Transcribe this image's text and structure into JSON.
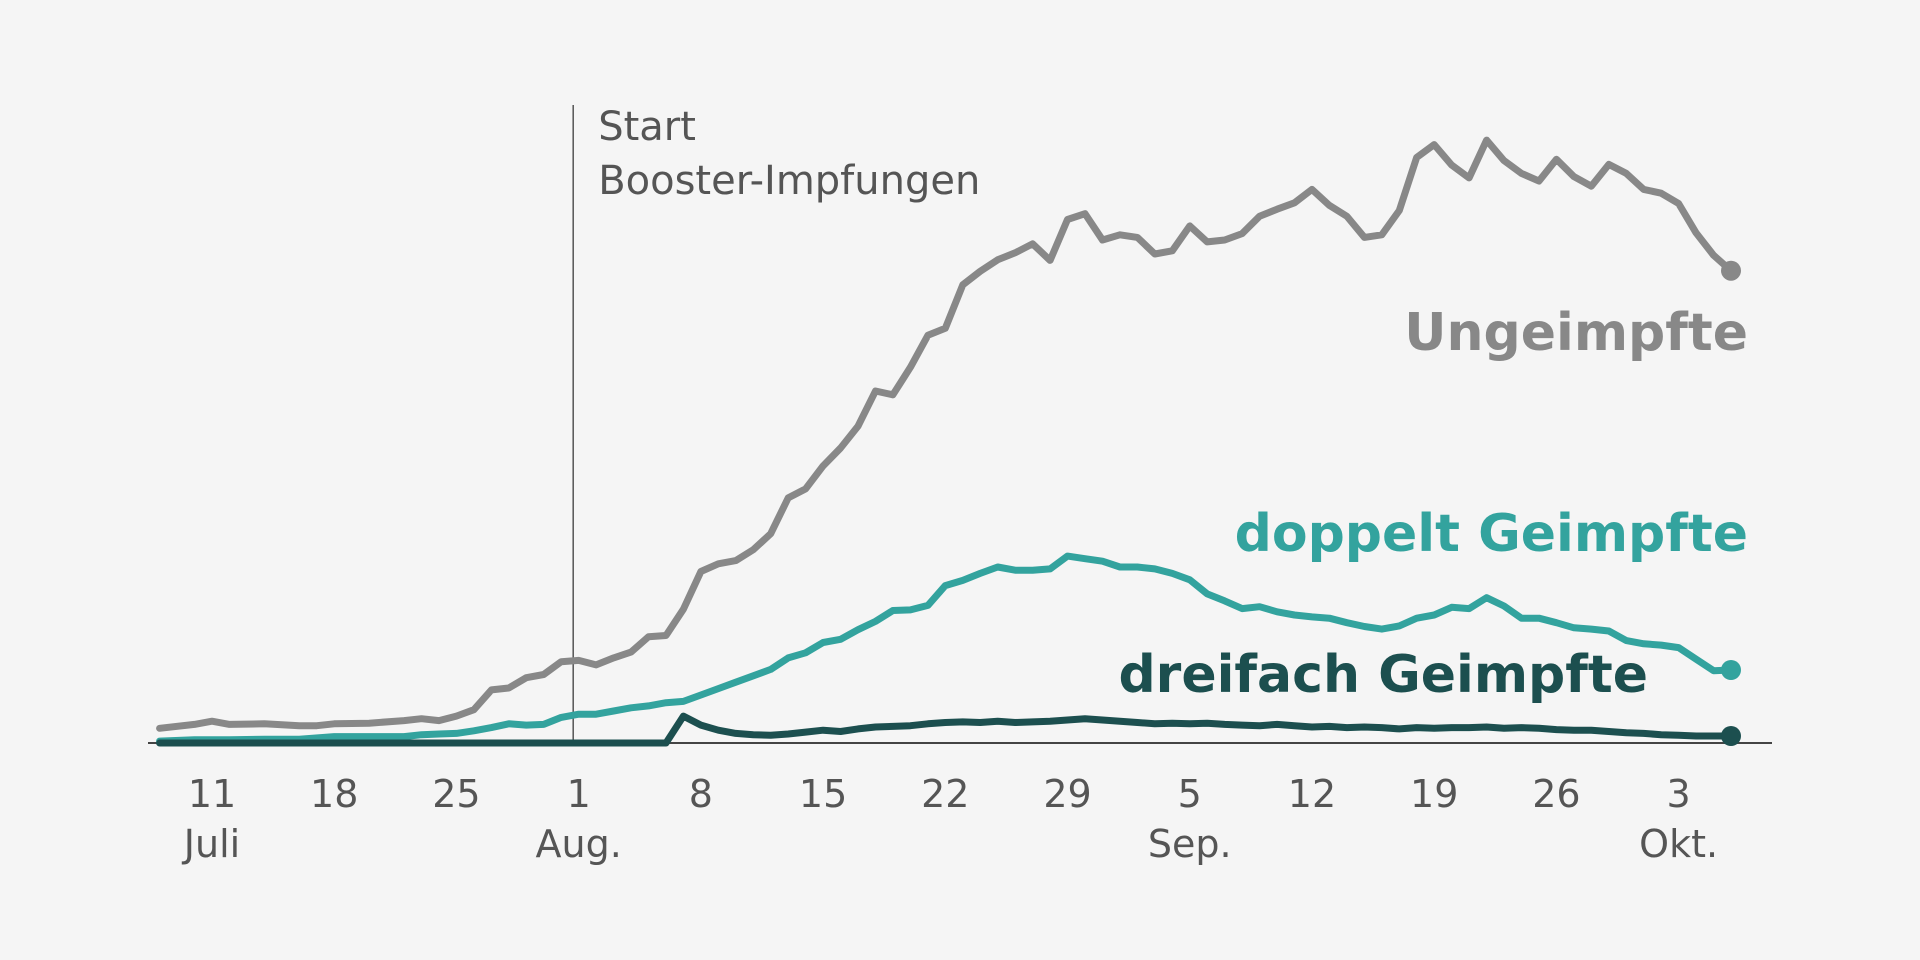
{
  "chart_data": {
    "type": "line",
    "x_start": "2021-07-07",
    "x_end": "2021-10-05",
    "ylim": [
      0,
      100
    ],
    "grid": false,
    "legend": "inline-labels",
    "x_ticks": [
      {
        "date": "2021-07-11",
        "day": "11",
        "month": "Juli"
      },
      {
        "date": "2021-07-18",
        "day": "18",
        "month": ""
      },
      {
        "date": "2021-07-25",
        "day": "25",
        "month": ""
      },
      {
        "date": "2021-08-01",
        "day": "1",
        "month": "Aug."
      },
      {
        "date": "2021-08-08",
        "day": "8",
        "month": ""
      },
      {
        "date": "2021-08-15",
        "day": "15",
        "month": ""
      },
      {
        "date": "2021-08-22",
        "day": "22",
        "month": ""
      },
      {
        "date": "2021-08-29",
        "day": "29",
        "month": ""
      },
      {
        "date": "2021-09-05",
        "day": "5",
        "month": "Sep."
      },
      {
        "date": "2021-09-12",
        "day": "12",
        "month": ""
      },
      {
        "date": "2021-09-19",
        "day": "19",
        "month": ""
      },
      {
        "date": "2021-09-26",
        "day": "26",
        "month": ""
      },
      {
        "date": "2021-10-03",
        "day": "3",
        "month": "Okt."
      }
    ],
    "annotation": {
      "date": "2021-07-31",
      "line1": "Start",
      "line2": "Booster-Impfungen"
    },
    "series": [
      {
        "name": "Ungeimpfte",
        "color": "#888888",
        "points": [
          [
            "2021-07-08",
            2.3
          ],
          [
            "2021-07-10",
            2.9
          ],
          [
            "2021-07-11",
            3.4
          ],
          [
            "2021-07-12",
            2.9
          ],
          [
            "2021-07-14",
            3.0
          ],
          [
            "2021-07-16",
            2.7
          ],
          [
            "2021-07-17",
            2.7
          ],
          [
            "2021-07-18",
            3.0
          ],
          [
            "2021-07-20",
            3.1
          ],
          [
            "2021-07-22",
            3.5
          ],
          [
            "2021-07-23",
            3.8
          ],
          [
            "2021-07-24",
            3.5
          ],
          [
            "2021-07-25",
            4.2
          ],
          [
            "2021-07-26",
            5.2
          ],
          [
            "2021-07-27",
            8.3
          ],
          [
            "2021-07-28",
            8.6
          ],
          [
            "2021-07-29",
            10.2
          ],
          [
            "2021-07-30",
            10.7
          ],
          [
            "2021-07-31",
            12.7
          ],
          [
            "2021-08-01",
            12.9
          ],
          [
            "2021-08-02",
            12.2
          ],
          [
            "2021-08-03",
            13.3
          ],
          [
            "2021-08-04",
            14.2
          ],
          [
            "2021-08-05",
            16.6
          ],
          [
            "2021-08-06",
            16.8
          ],
          [
            "2021-08-07",
            20.9
          ],
          [
            "2021-08-08",
            26.8
          ],
          [
            "2021-08-09",
            28.0
          ],
          [
            "2021-08-10",
            28.5
          ],
          [
            "2021-08-11",
            30.2
          ],
          [
            "2021-08-12",
            32.7
          ],
          [
            "2021-08-13",
            38.3
          ],
          [
            "2021-08-14",
            39.7
          ],
          [
            "2021-08-15",
            43.3
          ],
          [
            "2021-08-16",
            46.1
          ],
          [
            "2021-08-17",
            49.5
          ],
          [
            "2021-08-18",
            55.0
          ],
          [
            "2021-08-19",
            54.4
          ],
          [
            "2021-08-20",
            58.7
          ],
          [
            "2021-08-21",
            63.7
          ],
          [
            "2021-08-22",
            64.8
          ],
          [
            "2021-08-23",
            71.6
          ],
          [
            "2021-08-24",
            73.7
          ],
          [
            "2021-08-25",
            75.5
          ],
          [
            "2021-08-26",
            76.6
          ],
          [
            "2021-08-27",
            78.0
          ],
          [
            "2021-08-28",
            75.4
          ],
          [
            "2021-08-29",
            81.8
          ],
          [
            "2021-08-30",
            82.7
          ],
          [
            "2021-08-31",
            78.6
          ],
          [
            "2021-09-01",
            79.4
          ],
          [
            "2021-09-02",
            79.0
          ],
          [
            "2021-09-03",
            76.4
          ],
          [
            "2021-09-04",
            76.9
          ],
          [
            "2021-09-05",
            80.8
          ],
          [
            "2021-09-06",
            78.3
          ],
          [
            "2021-09-07",
            78.6
          ],
          [
            "2021-09-08",
            79.6
          ],
          [
            "2021-09-09",
            82.3
          ],
          [
            "2021-09-10",
            83.4
          ],
          [
            "2021-09-11",
            84.4
          ],
          [
            "2021-09-12",
            86.5
          ],
          [
            "2021-09-13",
            84.0
          ],
          [
            "2021-09-14",
            82.3
          ],
          [
            "2021-09-15",
            79.0
          ],
          [
            "2021-09-16",
            79.4
          ],
          [
            "2021-09-17",
            83.2
          ],
          [
            "2021-09-18",
            91.5
          ],
          [
            "2021-09-19",
            93.5
          ],
          [
            "2021-09-20",
            90.3
          ],
          [
            "2021-09-21",
            88.3
          ],
          [
            "2021-09-22",
            94.2
          ],
          [
            "2021-09-23",
            91.0
          ],
          [
            "2021-09-24",
            89.0
          ],
          [
            "2021-09-25",
            87.8
          ],
          [
            "2021-09-26",
            91.2
          ],
          [
            "2021-09-27",
            88.5
          ],
          [
            "2021-09-28",
            87.0
          ],
          [
            "2021-09-29",
            90.4
          ],
          [
            "2021-09-30",
            89.0
          ],
          [
            "2021-10-01",
            86.5
          ],
          [
            "2021-10-02",
            85.9
          ],
          [
            "2021-10-03",
            84.3
          ],
          [
            "2021-10-04",
            79.7
          ],
          [
            "2021-10-05",
            76.2
          ],
          [
            "2021-10-06",
            73.8
          ]
        ]
      },
      {
        "name": "doppelt Geimpfte",
        "color": "#33a39e",
        "points": [
          [
            "2021-07-08",
            0.3
          ],
          [
            "2021-07-10",
            0.5
          ],
          [
            "2021-07-12",
            0.5
          ],
          [
            "2021-07-14",
            0.6
          ],
          [
            "2021-07-16",
            0.6
          ],
          [
            "2021-07-18",
            1.0
          ],
          [
            "2021-07-20",
            1.0
          ],
          [
            "2021-07-22",
            1.0
          ],
          [
            "2021-07-23",
            1.3
          ],
          [
            "2021-07-24",
            1.4
          ],
          [
            "2021-07-25",
            1.5
          ],
          [
            "2021-07-26",
            1.9
          ],
          [
            "2021-07-27",
            2.4
          ],
          [
            "2021-07-28",
            3.0
          ],
          [
            "2021-07-29",
            2.8
          ],
          [
            "2021-07-30",
            2.9
          ],
          [
            "2021-07-31",
            4.0
          ],
          [
            "2021-08-01",
            4.5
          ],
          [
            "2021-08-02",
            4.5
          ],
          [
            "2021-08-03",
            5.0
          ],
          [
            "2021-08-04",
            5.5
          ],
          [
            "2021-08-05",
            5.8
          ],
          [
            "2021-08-06",
            6.3
          ],
          [
            "2021-08-07",
            6.5
          ],
          [
            "2021-08-08",
            7.5
          ],
          [
            "2021-08-09",
            8.5
          ],
          [
            "2021-08-10",
            9.5
          ],
          [
            "2021-08-11",
            10.5
          ],
          [
            "2021-08-12",
            11.5
          ],
          [
            "2021-08-13",
            13.3
          ],
          [
            "2021-08-14",
            14.1
          ],
          [
            "2021-08-15",
            15.7
          ],
          [
            "2021-08-16",
            16.2
          ],
          [
            "2021-08-17",
            17.7
          ],
          [
            "2021-08-18",
            19.0
          ],
          [
            "2021-08-19",
            20.7
          ],
          [
            "2021-08-20",
            20.8
          ],
          [
            "2021-08-21",
            21.5
          ],
          [
            "2021-08-22",
            24.6
          ],
          [
            "2021-08-23",
            25.4
          ],
          [
            "2021-08-24",
            26.5
          ],
          [
            "2021-08-25",
            27.5
          ],
          [
            "2021-08-26",
            27.0
          ],
          [
            "2021-08-27",
            27.0
          ],
          [
            "2021-08-28",
            27.2
          ],
          [
            "2021-08-29",
            29.2
          ],
          [
            "2021-08-30",
            28.8
          ],
          [
            "2021-08-31",
            28.4
          ],
          [
            "2021-09-01",
            27.5
          ],
          [
            "2021-09-02",
            27.5
          ],
          [
            "2021-09-03",
            27.2
          ],
          [
            "2021-09-04",
            26.5
          ],
          [
            "2021-09-05",
            25.5
          ],
          [
            "2021-09-06",
            23.3
          ],
          [
            "2021-09-07",
            22.2
          ],
          [
            "2021-09-08",
            21.0
          ],
          [
            "2021-09-09",
            21.3
          ],
          [
            "2021-09-10",
            20.5
          ],
          [
            "2021-09-11",
            20.0
          ],
          [
            "2021-09-12",
            19.7
          ],
          [
            "2021-09-13",
            19.5
          ],
          [
            "2021-09-14",
            18.8
          ],
          [
            "2021-09-15",
            18.2
          ],
          [
            "2021-09-16",
            17.8
          ],
          [
            "2021-09-17",
            18.3
          ],
          [
            "2021-09-18",
            19.5
          ],
          [
            "2021-09-19",
            20.0
          ],
          [
            "2021-09-20",
            21.2
          ],
          [
            "2021-09-21",
            21.0
          ],
          [
            "2021-09-22",
            22.7
          ],
          [
            "2021-09-23",
            21.4
          ],
          [
            "2021-09-24",
            19.5
          ],
          [
            "2021-09-25",
            19.5
          ],
          [
            "2021-09-26",
            18.8
          ],
          [
            "2021-09-27",
            18.0
          ],
          [
            "2021-09-28",
            17.8
          ],
          [
            "2021-09-29",
            17.5
          ],
          [
            "2021-09-30",
            16.0
          ],
          [
            "2021-10-01",
            15.5
          ],
          [
            "2021-10-02",
            15.3
          ],
          [
            "2021-10-03",
            14.9
          ],
          [
            "2021-10-04",
            13.1
          ],
          [
            "2021-10-05",
            11.3
          ],
          [
            "2021-10-06",
            11.4
          ]
        ]
      },
      {
        "name": "dreifach Geimpfte",
        "color": "#1c4f4f",
        "points": [
          [
            "2021-07-08",
            0.0
          ],
          [
            "2021-07-15",
            0.0
          ],
          [
            "2021-07-22",
            0.0
          ],
          [
            "2021-07-29",
            0.0
          ],
          [
            "2021-08-05",
            0.0
          ],
          [
            "2021-08-06",
            0.0
          ],
          [
            "2021-08-07",
            4.2
          ],
          [
            "2021-08-08",
            2.8
          ],
          [
            "2021-08-09",
            2.0
          ],
          [
            "2021-08-10",
            1.5
          ],
          [
            "2021-08-11",
            1.3
          ],
          [
            "2021-08-12",
            1.2
          ],
          [
            "2021-08-13",
            1.4
          ],
          [
            "2021-08-14",
            1.7
          ],
          [
            "2021-08-15",
            2.0
          ],
          [
            "2021-08-16",
            1.8
          ],
          [
            "2021-08-17",
            2.2
          ],
          [
            "2021-08-18",
            2.5
          ],
          [
            "2021-08-19",
            2.6
          ],
          [
            "2021-08-20",
            2.7
          ],
          [
            "2021-08-21",
            3.0
          ],
          [
            "2021-08-22",
            3.2
          ],
          [
            "2021-08-23",
            3.3
          ],
          [
            "2021-08-24",
            3.2
          ],
          [
            "2021-08-25",
            3.4
          ],
          [
            "2021-08-26",
            3.2
          ],
          [
            "2021-08-27",
            3.3
          ],
          [
            "2021-08-28",
            3.4
          ],
          [
            "2021-08-29",
            3.6
          ],
          [
            "2021-08-30",
            3.8
          ],
          [
            "2021-08-31",
            3.6
          ],
          [
            "2021-09-01",
            3.4
          ],
          [
            "2021-09-02",
            3.2
          ],
          [
            "2021-09-03",
            3.0
          ],
          [
            "2021-09-04",
            3.1
          ],
          [
            "2021-09-05",
            3.0
          ],
          [
            "2021-09-06",
            3.1
          ],
          [
            "2021-09-07",
            2.9
          ],
          [
            "2021-09-08",
            2.8
          ],
          [
            "2021-09-09",
            2.7
          ],
          [
            "2021-09-10",
            2.9
          ],
          [
            "2021-09-11",
            2.7
          ],
          [
            "2021-09-12",
            2.5
          ],
          [
            "2021-09-13",
            2.6
          ],
          [
            "2021-09-14",
            2.4
          ],
          [
            "2021-09-15",
            2.5
          ],
          [
            "2021-09-16",
            2.4
          ],
          [
            "2021-09-17",
            2.2
          ],
          [
            "2021-09-18",
            2.4
          ],
          [
            "2021-09-19",
            2.3
          ],
          [
            "2021-09-20",
            2.4
          ],
          [
            "2021-09-21",
            2.4
          ],
          [
            "2021-09-22",
            2.5
          ],
          [
            "2021-09-23",
            2.3
          ],
          [
            "2021-09-24",
            2.4
          ],
          [
            "2021-09-25",
            2.3
          ],
          [
            "2021-09-26",
            2.1
          ],
          [
            "2021-09-27",
            2.0
          ],
          [
            "2021-09-28",
            2.0
          ],
          [
            "2021-09-29",
            1.8
          ],
          [
            "2021-09-30",
            1.6
          ],
          [
            "2021-10-01",
            1.5
          ],
          [
            "2021-10-02",
            1.3
          ],
          [
            "2021-10-03",
            1.2
          ],
          [
            "2021-10-04",
            1.1
          ],
          [
            "2021-10-05",
            1.1
          ],
          [
            "2021-10-06",
            1.1
          ]
        ]
      }
    ]
  }
}
